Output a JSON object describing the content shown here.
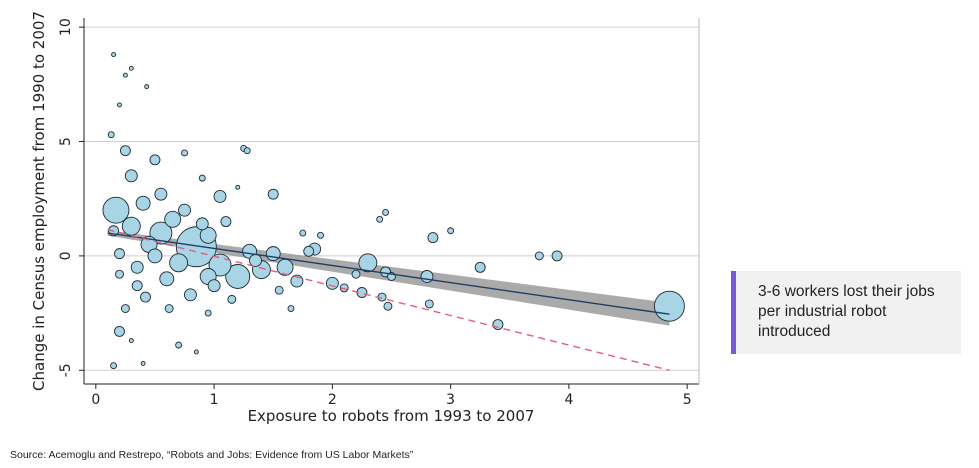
{
  "chart_data": {
    "type": "scatter",
    "title": "",
    "xlabel": "Exposure to robots from 1993 to 2007",
    "ylabel": "Change in Census employment from 1990 to 2007",
    "xlim": [
      -0.1,
      5.1
    ],
    "ylim": [
      -5.6,
      10.4
    ],
    "xticks": [
      0,
      1,
      2,
      3,
      4,
      5
    ],
    "yticks": [
      -5,
      0,
      5,
      10
    ],
    "grid": "horizontal",
    "fit_line": {
      "name": "fitted",
      "x": [
        0.1,
        4.85
      ],
      "y": [
        1.0,
        -2.55
      ],
      "ci_halfwidth": [
        0.12,
        0.5
      ]
    },
    "comparison_line": {
      "name": "dashed",
      "x": [
        0.1,
        4.85
      ],
      "y": [
        1.15,
        -5.0
      ]
    },
    "points": [
      {
        "x": 0.17,
        "y": 2.0,
        "s": 13
      },
      {
        "x": 0.85,
        "y": 0.4,
        "s": 20
      },
      {
        "x": 1.2,
        "y": -0.9,
        "s": 12
      },
      {
        "x": 1.05,
        "y": -0.4,
        "s": 11
      },
      {
        "x": 0.55,
        "y": 1.0,
        "s": 11
      },
      {
        "x": 0.3,
        "y": 1.3,
        "s": 9
      },
      {
        "x": 0.7,
        "y": -0.3,
        "s": 9
      },
      {
        "x": 0.95,
        "y": 0.9,
        "s": 8
      },
      {
        "x": 1.4,
        "y": -0.6,
        "s": 9
      },
      {
        "x": 1.6,
        "y": -0.5,
        "s": 8
      },
      {
        "x": 1.3,
        "y": 0.2,
        "s": 7
      },
      {
        "x": 0.45,
        "y": 0.5,
        "s": 8
      },
      {
        "x": 0.65,
        "y": 1.6,
        "s": 8
      },
      {
        "x": 0.4,
        "y": 2.3,
        "s": 7
      },
      {
        "x": 0.3,
        "y": 3.5,
        "s": 6
      },
      {
        "x": 0.25,
        "y": 4.6,
        "s": 5
      },
      {
        "x": 0.5,
        "y": 4.2,
        "s": 5
      },
      {
        "x": 0.55,
        "y": 2.7,
        "s": 6
      },
      {
        "x": 0.8,
        "y": -1.7,
        "s": 6
      },
      {
        "x": 0.6,
        "y": -1.0,
        "s": 7
      },
      {
        "x": 0.2,
        "y": -3.3,
        "s": 5
      },
      {
        "x": 0.25,
        "y": -2.3,
        "s": 4
      },
      {
        "x": 0.15,
        "y": -4.8,
        "s": 3
      },
      {
        "x": 0.2,
        "y": 0.1,
        "s": 5
      },
      {
        "x": 0.15,
        "y": 1.1,
        "s": 5
      },
      {
        "x": 0.35,
        "y": -0.5,
        "s": 6
      },
      {
        "x": 1.0,
        "y": -1.3,
        "s": 6
      },
      {
        "x": 1.1,
        "y": 1.5,
        "s": 5
      },
      {
        "x": 1.5,
        "y": 2.7,
        "s": 5
      },
      {
        "x": 1.5,
        "y": 0.1,
        "s": 7
      },
      {
        "x": 1.7,
        "y": -1.1,
        "s": 6
      },
      {
        "x": 1.8,
        "y": 0.2,
        "s": 5
      },
      {
        "x": 1.85,
        "y": 0.3,
        "s": 6
      },
      {
        "x": 2.0,
        "y": -1.2,
        "s": 6
      },
      {
        "x": 2.1,
        "y": -1.4,
        "s": 4
      },
      {
        "x": 2.25,
        "y": -1.6,
        "s": 5
      },
      {
        "x": 2.3,
        "y": -0.3,
        "s": 9
      },
      {
        "x": 2.45,
        "y": -0.7,
        "s": 5
      },
      {
        "x": 2.5,
        "y": -0.9,
        "s": 4
      },
      {
        "x": 2.42,
        "y": -1.8,
        "s": 4
      },
      {
        "x": 2.47,
        "y": -2.2,
        "s": 4
      },
      {
        "x": 2.4,
        "y": 1.6,
        "s": 3
      },
      {
        "x": 2.45,
        "y": 1.9,
        "s": 3
      },
      {
        "x": 2.8,
        "y": -0.9,
        "s": 6
      },
      {
        "x": 2.82,
        "y": -2.1,
        "s": 4
      },
      {
        "x": 2.85,
        "y": 0.8,
        "s": 5
      },
      {
        "x": 3.0,
        "y": 1.1,
        "s": 3
      },
      {
        "x": 3.25,
        "y": -0.5,
        "s": 5
      },
      {
        "x": 3.4,
        "y": -3.0,
        "s": 5
      },
      {
        "x": 3.75,
        "y": 0.0,
        "s": 4
      },
      {
        "x": 3.9,
        "y": 0.0,
        "s": 5
      },
      {
        "x": 4.85,
        "y": -2.2,
        "s": 15
      },
      {
        "x": 1.05,
        "y": 2.6,
        "s": 6
      },
      {
        "x": 1.25,
        "y": 4.7,
        "s": 3
      },
      {
        "x": 1.28,
        "y": 4.6,
        "s": 3
      },
      {
        "x": 0.75,
        "y": 4.5,
        "s": 3
      },
      {
        "x": 0.9,
        "y": 3.4,
        "s": 3
      },
      {
        "x": 1.2,
        "y": 3.0,
        "s": 2
      },
      {
        "x": 0.85,
        "y": -4.2,
        "s": 2
      },
      {
        "x": 0.4,
        "y": -4.7,
        "s": 2
      },
      {
        "x": 0.25,
        "y": 7.9,
        "s": 2
      },
      {
        "x": 0.3,
        "y": 8.2,
        "s": 2
      },
      {
        "x": 0.15,
        "y": 8.8,
        "s": 2
      },
      {
        "x": 0.43,
        "y": 7.4,
        "s": 2
      },
      {
        "x": 0.2,
        "y": 6.6,
        "s": 2
      },
      {
        "x": 0.13,
        "y": 5.3,
        "s": 3
      },
      {
        "x": 0.42,
        "y": -1.8,
        "s": 5
      },
      {
        "x": 0.62,
        "y": -2.3,
        "s": 4
      },
      {
        "x": 0.95,
        "y": -2.5,
        "s": 3
      },
      {
        "x": 1.15,
        "y": -1.9,
        "s": 4
      },
      {
        "x": 0.75,
        "y": 2.0,
        "s": 6
      },
      {
        "x": 0.9,
        "y": 1.4,
        "s": 6
      },
      {
        "x": 0.35,
        "y": -1.3,
        "s": 5
      },
      {
        "x": 0.5,
        "y": 0.0,
        "s": 7
      },
      {
        "x": 0.2,
        "y": -0.8,
        "s": 4
      },
      {
        "x": 1.35,
        "y": -0.2,
        "s": 6
      },
      {
        "x": 1.55,
        "y": -1.5,
        "s": 4
      },
      {
        "x": 1.65,
        "y": -2.3,
        "s": 3
      },
      {
        "x": 0.7,
        "y": -3.9,
        "s": 3
      },
      {
        "x": 0.3,
        "y": -3.7,
        "s": 2
      },
      {
        "x": 1.9,
        "y": 0.9,
        "s": 3
      },
      {
        "x": 1.75,
        "y": 1.0,
        "s": 3
      },
      {
        "x": 2.2,
        "y": -0.8,
        "s": 4
      },
      {
        "x": 0.95,
        "y": -0.9,
        "s": 8
      }
    ]
  },
  "callout": {
    "text": "3-6 workers lost their jobs per industrial robot introduced",
    "accent_color": "#7b57d8",
    "background": "#f1f1f1"
  },
  "source": "Source: Acemoglu and Restrepo, “Robots and Jobs: Evidence from US Labor Markets”",
  "colors": {
    "bubble_fill": "#a8d5e5",
    "bubble_stroke": "#1e2a33",
    "fit_line": "#1b3f66",
    "ci_band": "#8e8e8e",
    "dashed_line": "#e0607e",
    "grid": "#cfcfcf"
  }
}
